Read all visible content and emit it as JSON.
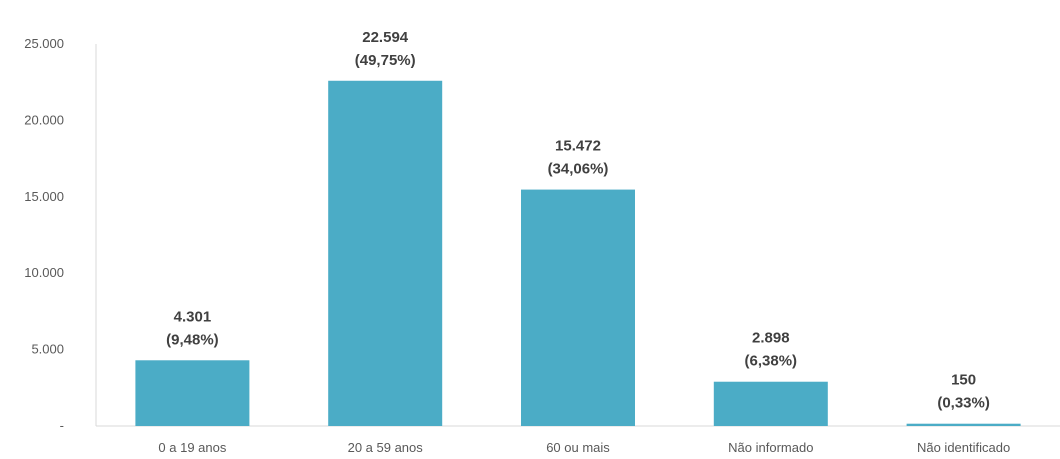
{
  "chart_data": {
    "type": "bar",
    "title": "",
    "xlabel": "",
    "ylabel": "",
    "categories": [
      "0 a 19 anos",
      "20 a 59 anos",
      "60 ou mais",
      "Não informado",
      "Não identificado"
    ],
    "values": [
      4301,
      22594,
      15472,
      2898,
      150
    ],
    "data_labels": [
      {
        "value": "4.301",
        "percent": "(9,48%)"
      },
      {
        "value": "22.594",
        "percent": "(49,75%)"
      },
      {
        "value": "15.472",
        "percent": "(34,06%)"
      },
      {
        "value": "2.898",
        "percent": "(6,38%)"
      },
      {
        "value": "150",
        "percent": "(0,33%)"
      }
    ],
    "yticks": [
      0,
      5000,
      10000,
      15000,
      20000,
      25000
    ],
    "ytick_labels": [
      "-",
      "5.000",
      "10.000",
      "15.000",
      "20.000",
      "25.000"
    ],
    "ylim": [
      0,
      25000
    ],
    "grid": false,
    "legend": "none",
    "bar_color": "#4bacc6"
  }
}
